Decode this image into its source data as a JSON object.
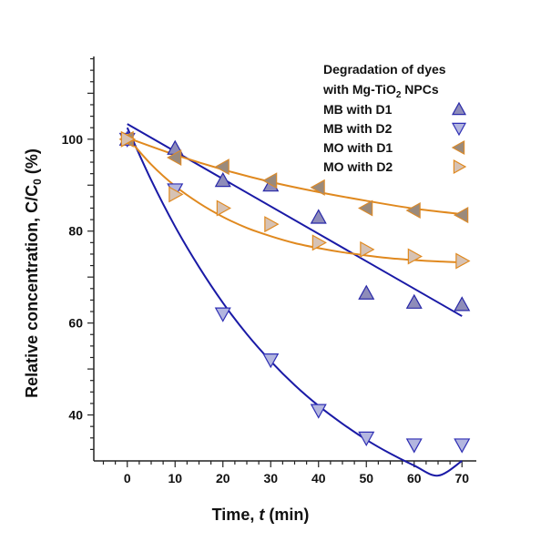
{
  "chart_data": {
    "type": "scatter",
    "xlabel": "Time, t (min)",
    "ylabel": "Relative concentration, C/C0 (%)",
    "xlim": [
      -7,
      73
    ],
    "ylim": [
      30,
      118
    ],
    "xticks": [
      0,
      10,
      20,
      30,
      40,
      50,
      60,
      70
    ],
    "yticks": [
      40,
      60,
      80,
      100
    ],
    "grid": false,
    "legend": {
      "title_line1": "Degradation of dyes",
      "title_line2_prefix": "with Mg-TiO",
      "title_line2_subscript": "2",
      "title_line2_suffix": " NPCs",
      "placement": "top-right"
    },
    "series": [
      {
        "name": "MB with D1",
        "marker": "triangle-up",
        "marker_fill": "#8e8cb9",
        "marker_stroke": "#2828a8",
        "x": [
          0,
          10,
          20,
          30,
          40,
          50,
          60,
          70
        ],
        "y": [
          100,
          98,
          91,
          90,
          83,
          66.5,
          64.5,
          64
        ],
        "fit": {
          "x": [
            0,
            70
          ],
          "y": [
            103.3,
            61.5
          ],
          "color": "#1a1aa6"
        }
      },
      {
        "name": "MB with D2",
        "marker": "triangle-down",
        "marker_fill": "#b3b6df",
        "marker_stroke": "#2f2fb4",
        "x": [
          0,
          10,
          20,
          30,
          40,
          50,
          60,
          70
        ],
        "y": [
          100,
          89,
          62,
          52,
          41,
          35,
          33.5,
          33.5
        ],
        "fit": {
          "x": [
            0,
            5,
            10,
            15,
            20,
            25,
            30,
            35,
            40,
            45,
            50,
            55,
            60,
            65,
            70
          ],
          "y": [
            102.5,
            91.1,
            81.0,
            72.2,
            64.4,
            57.6,
            51.7,
            46.5,
            42.0,
            38.1,
            34.6,
            31.6,
            29.0,
            26.8,
            30.0
          ],
          "color": "#1a1aa6"
        }
      },
      {
        "name": "MO with D1",
        "marker": "triangle-left",
        "marker_fill": "#9a8a7c",
        "marker_stroke": "#d98a2c",
        "x": [
          0,
          10,
          20,
          30,
          40,
          50,
          60,
          70
        ],
        "y": [
          100,
          96,
          94,
          91,
          89.5,
          85,
          84.5,
          83.5
        ],
        "fit": {
          "x": [
            0,
            10,
            20,
            30,
            40,
            50,
            60,
            70
          ],
          "y": [
            100.3,
            96.6,
            93.4,
            90.7,
            88.5,
            86.6,
            84.9,
            83.7
          ],
          "color": "#e0891f"
        }
      },
      {
        "name": "MO with D2",
        "marker": "triangle-right",
        "marker_fill": "#d6c2b4",
        "marker_stroke": "#e0891f",
        "x": [
          0,
          10,
          20,
          30,
          40,
          50,
          60,
          70
        ],
        "y": [
          100,
          88,
          85,
          81.5,
          77.5,
          76,
          74.5,
          73.5
        ],
        "fit": {
          "x": [
            0,
            5,
            10,
            15,
            20,
            25,
            30,
            35,
            40,
            45,
            50,
            55,
            60,
            65,
            70
          ],
          "y": [
            100.4,
            94.5,
            89.8,
            86.1,
            83.1,
            80.7,
            78.9,
            77.4,
            76.3,
            75.4,
            74.7,
            74.1,
            73.7,
            73.4,
            73.2
          ],
          "color": "#e0891f"
        }
      }
    ]
  }
}
